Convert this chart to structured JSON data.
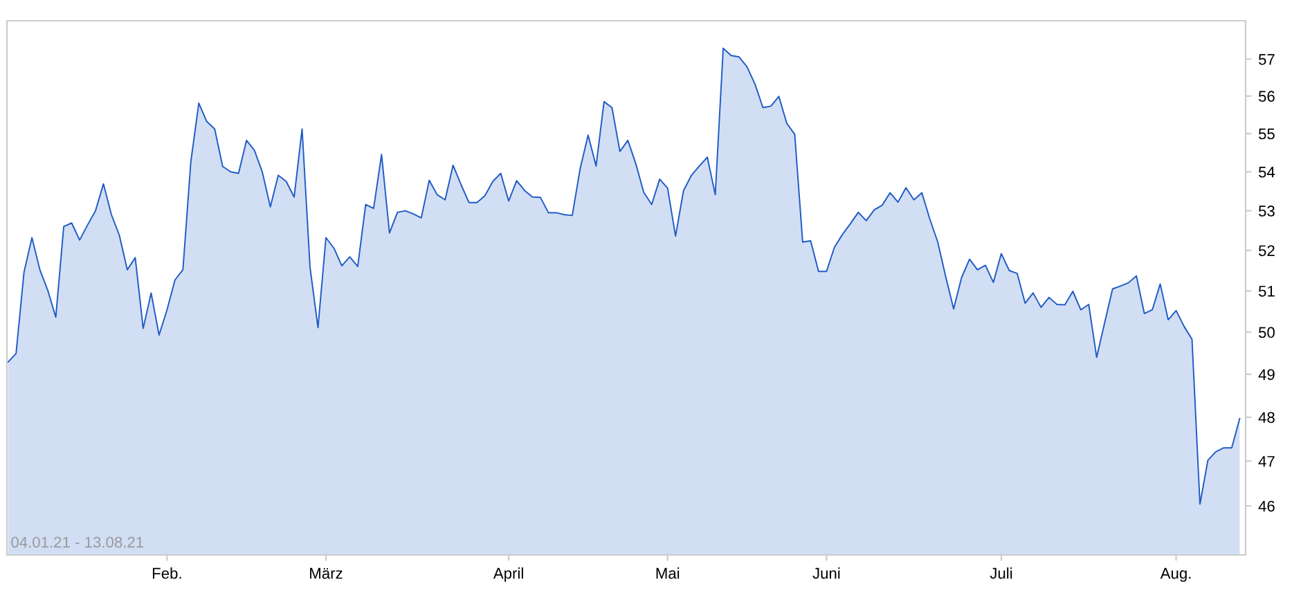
{
  "chart_data": {
    "type": "area",
    "categories": [
      null,
      null,
      null,
      null,
      null,
      null,
      null,
      null,
      null,
      null,
      null,
      null,
      null,
      null,
      null,
      null,
      null,
      null,
      null,
      null,
      "Feb.",
      null,
      null,
      null,
      null,
      null,
      null,
      null,
      null,
      null,
      null,
      null,
      null,
      null,
      null,
      null,
      null,
      null,
      null,
      null,
      "März",
      null,
      null,
      null,
      null,
      null,
      null,
      null,
      null,
      null,
      null,
      null,
      null,
      null,
      null,
      null,
      null,
      null,
      null,
      null,
      null,
      null,
      null,
      "April",
      null,
      null,
      null,
      null,
      null,
      null,
      null,
      null,
      null,
      null,
      null,
      null,
      null,
      null,
      null,
      null,
      null,
      null,
      null,
      "Mai",
      null,
      null,
      null,
      null,
      null,
      null,
      null,
      null,
      null,
      null,
      null,
      null,
      null,
      null,
      null,
      null,
      null,
      null,
      null,
      "Juni",
      null,
      null,
      null,
      null,
      null,
      null,
      null,
      null,
      null,
      null,
      null,
      null,
      null,
      null,
      null,
      null,
      null,
      null,
      null,
      null,
      null,
      "Juli",
      null,
      null,
      null,
      null,
      null,
      null,
      null,
      null,
      null,
      null,
      null,
      null,
      null,
      null,
      null,
      null,
      null,
      null,
      null,
      null,
      null,
      "Aug.",
      null,
      null,
      null,
      null,
      null,
      null,
      null,
      null
    ],
    "series": [
      {
        "color": "#1f5bc6",
        "values": [
          49.29,
          49.49,
          51.46,
          52.32,
          51.52,
          51.01,
          50.36,
          52.6,
          52.69,
          52.26,
          52.64,
          53.0,
          53.69,
          52.9,
          52.38,
          51.52,
          51.82,
          50.09,
          50.95,
          49.93,
          50.54,
          51.27,
          51.52,
          54.27,
          55.81,
          55.32,
          55.12,
          54.14,
          54.0,
          53.96,
          54.82,
          54.56,
          53.99,
          53.1,
          53.91,
          53.75,
          53.35,
          55.12,
          51.58,
          50.11,
          52.32,
          52.06,
          51.62,
          51.84,
          51.6,
          53.16,
          53.06,
          54.45,
          52.44,
          52.96,
          53.0,
          52.92,
          52.82,
          53.78,
          53.41,
          53.28,
          54.17,
          53.67,
          53.21,
          53.21,
          53.38,
          53.75,
          53.96,
          53.25,
          53.77,
          53.52,
          53.35,
          53.34,
          52.95,
          52.95,
          52.9,
          52.88,
          54.09,
          54.96,
          54.15,
          55.85,
          55.69,
          54.53,
          54.82,
          54.21,
          53.47,
          53.16,
          53.81,
          53.58,
          52.36,
          53.51,
          53.91,
          54.15,
          54.38,
          53.41,
          57.3,
          57.1,
          57.06,
          56.79,
          56.32,
          55.69,
          55.73,
          55.99,
          55.27,
          54.98,
          52.21,
          52.24,
          51.48,
          51.48,
          52.08,
          52.4,
          52.67,
          52.96,
          52.75,
          53.02,
          53.14,
          53.46,
          53.22,
          53.59,
          53.28,
          53.46,
          52.79,
          52.21,
          51.35,
          50.56,
          51.33,
          51.78,
          51.52,
          51.63,
          51.21,
          51.92,
          51.5,
          51.43,
          50.7,
          50.95,
          50.6,
          50.84,
          50.67,
          50.66,
          50.99,
          50.54,
          50.67,
          49.4,
          50.22,
          51.05,
          51.12,
          51.2,
          51.37,
          50.45,
          50.54,
          51.17,
          50.3,
          50.52,
          50.14,
          49.83,
          46.04,
          47.02,
          47.21,
          47.3,
          47.3,
          47.97
        ]
      }
    ],
    "log": true,
    "ylim": [
      44.93,
      58.06
    ],
    "yticks": [
      46,
      47,
      48,
      49,
      50,
      51,
      52,
      53,
      54,
      55,
      56,
      57
    ],
    "grid": false,
    "annotations": [
      "04.01.21 - 13.08.21"
    ]
  }
}
